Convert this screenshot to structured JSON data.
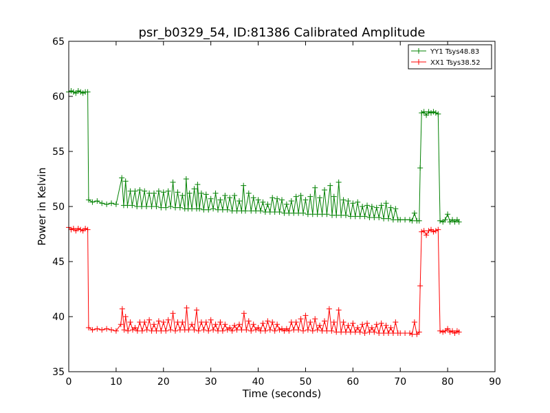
{
  "chart_data": {
    "type": "line",
    "title": "psr_b0329_54, ID:81386 Calibrated Amplitude",
    "xlabel": "Time (seconds)",
    "ylabel": "Power in Kelvin",
    "xlim": [
      0,
      90
    ],
    "ylim": [
      35,
      65
    ],
    "x_ticks": [
      0,
      10,
      20,
      30,
      40,
      50,
      60,
      70,
      80,
      90
    ],
    "y_ticks": [
      35,
      40,
      45,
      50,
      55,
      60,
      65
    ],
    "grid": false,
    "legend_position": "top-right",
    "marker": "+",
    "series": [
      {
        "name": "YY1 Tsys48.83",
        "color": "#008000",
        "points": [
          [
            0,
            60.4
          ],
          [
            0.5,
            60.5
          ],
          [
            1,
            60.4
          ],
          [
            1.5,
            60.3
          ],
          [
            2,
            60.5
          ],
          [
            2.5,
            60.4
          ],
          [
            3,
            60.3
          ],
          [
            3.5,
            60.4
          ],
          [
            4,
            60.4
          ],
          [
            4.2,
            50.6
          ],
          [
            5,
            50.4
          ],
          [
            6,
            50.5
          ],
          [
            7,
            50.3
          ],
          [
            8,
            50.2
          ],
          [
            9,
            50.3
          ],
          [
            10,
            50.2
          ],
          [
            11.2,
            52.6
          ],
          [
            11.6,
            50.1
          ],
          [
            12,
            52.3
          ],
          [
            12.4,
            50.1
          ],
          [
            13,
            51.4
          ],
          [
            13.4,
            50.1
          ],
          [
            14,
            51.4
          ],
          [
            14.4,
            50.0
          ],
          [
            15,
            51.5
          ],
          [
            15.4,
            50.0
          ],
          [
            16,
            51.4
          ],
          [
            16.4,
            50.0
          ],
          [
            17,
            51.2
          ],
          [
            17.5,
            50.0
          ],
          [
            18,
            51.2
          ],
          [
            18.5,
            50.0
          ],
          [
            19,
            51.4
          ],
          [
            19.5,
            49.9
          ],
          [
            20,
            51.3
          ],
          [
            20.5,
            49.9
          ],
          [
            21,
            51.4
          ],
          [
            21.5,
            50.0
          ],
          [
            22,
            52.2
          ],
          [
            22.5,
            49.9
          ],
          [
            23,
            51.3
          ],
          [
            23.5,
            49.9
          ],
          [
            24,
            51.0
          ],
          [
            24.5,
            49.8
          ],
          [
            24.8,
            52.5
          ],
          [
            25.2,
            49.8
          ],
          [
            25.5,
            51.2
          ],
          [
            26,
            49.8
          ],
          [
            26.5,
            51.6
          ],
          [
            27,
            49.8
          ],
          [
            27.2,
            52.0
          ],
          [
            27.6,
            49.8
          ],
          [
            28,
            51.2
          ],
          [
            28.5,
            49.7
          ],
          [
            29,
            51.1
          ],
          [
            29.5,
            49.7
          ],
          [
            30,
            50.7
          ],
          [
            30.5,
            49.8
          ],
          [
            31,
            51.2
          ],
          [
            31.5,
            49.7
          ],
          [
            32,
            50.6
          ],
          [
            32.5,
            49.7
          ],
          [
            33,
            51.0
          ],
          [
            33.5,
            49.7
          ],
          [
            34,
            50.8
          ],
          [
            34.5,
            49.6
          ],
          [
            35,
            51.0
          ],
          [
            35.5,
            49.6
          ],
          [
            36,
            50.5
          ],
          [
            36.5,
            49.6
          ],
          [
            36.9,
            51.9
          ],
          [
            37.3,
            49.6
          ],
          [
            38,
            51.2
          ],
          [
            38.5,
            49.6
          ],
          [
            39,
            50.8
          ],
          [
            39.5,
            49.6
          ],
          [
            40,
            50.6
          ],
          [
            40.5,
            49.6
          ],
          [
            41,
            50.4
          ],
          [
            41.5,
            49.5
          ],
          [
            42,
            50.2
          ],
          [
            42.5,
            49.5
          ],
          [
            43,
            50.8
          ],
          [
            43.5,
            49.5
          ],
          [
            44,
            50.7
          ],
          [
            44.5,
            49.5
          ],
          [
            45,
            50.6
          ],
          [
            45.5,
            49.4
          ],
          [
            46,
            50.2
          ],
          [
            46.5,
            49.4
          ],
          [
            47,
            50.5
          ],
          [
            47.5,
            49.4
          ],
          [
            48,
            50.9
          ],
          [
            48.5,
            49.4
          ],
          [
            49,
            51.0
          ],
          [
            49.5,
            49.4
          ],
          [
            50,
            50.6
          ],
          [
            50.5,
            49.3
          ],
          [
            51,
            50.9
          ],
          [
            51.5,
            49.3
          ],
          [
            52,
            51.7
          ],
          [
            52.5,
            49.3
          ],
          [
            53,
            50.8
          ],
          [
            53.5,
            49.3
          ],
          [
            54,
            51.5
          ],
          [
            54.5,
            49.3
          ],
          [
            55.2,
            51.9
          ],
          [
            55.6,
            49.2
          ],
          [
            56,
            50.9
          ],
          [
            56.5,
            49.2
          ],
          [
            57,
            52.2
          ],
          [
            57.5,
            49.2
          ],
          [
            58,
            50.6
          ],
          [
            58.5,
            49.2
          ],
          [
            59,
            50.5
          ],
          [
            59.5,
            49.1
          ],
          [
            60,
            50.3
          ],
          [
            60.5,
            49.1
          ],
          [
            61,
            50.4
          ],
          [
            61.5,
            49.1
          ],
          [
            62,
            50.0
          ],
          [
            62.5,
            49.1
          ],
          [
            63,
            50.1
          ],
          [
            63.5,
            49.0
          ],
          [
            64,
            50.0
          ],
          [
            64.5,
            49.0
          ],
          [
            65,
            49.9
          ],
          [
            65.5,
            49.0
          ],
          [
            66,
            50.1
          ],
          [
            66.5,
            48.9
          ],
          [
            67,
            50.3
          ],
          [
            67.5,
            48.9
          ],
          [
            68,
            49.9
          ],
          [
            68.5,
            48.8
          ],
          [
            69,
            49.8
          ],
          [
            69.5,
            48.8
          ],
          [
            70,
            48.8
          ],
          [
            71,
            48.8
          ],
          [
            72,
            48.8
          ],
          [
            72.5,
            48.7
          ],
          [
            73,
            49.4
          ],
          [
            73.5,
            48.7
          ],
          [
            74,
            48.7
          ],
          [
            74.2,
            53.5
          ],
          [
            74.5,
            58.5
          ],
          [
            75,
            58.6
          ],
          [
            75.5,
            58.3
          ],
          [
            76,
            58.6
          ],
          [
            76.5,
            58.5
          ],
          [
            77,
            58.6
          ],
          [
            77.5,
            58.5
          ],
          [
            78,
            58.4
          ],
          [
            78.4,
            48.7
          ],
          [
            79,
            48.6
          ],
          [
            79.5,
            48.8
          ],
          [
            80,
            49.3
          ],
          [
            80.5,
            48.6
          ],
          [
            81,
            48.8
          ],
          [
            81.5,
            48.6
          ],
          [
            82,
            48.8
          ],
          [
            82.4,
            48.6
          ]
        ]
      },
      {
        "name": "XX1 Tsys38.52",
        "color": "#ff0000",
        "points": [
          [
            0,
            48.1
          ],
          [
            0.5,
            47.9
          ],
          [
            1,
            48.0
          ],
          [
            1.5,
            47.8
          ],
          [
            2,
            48.0
          ],
          [
            2.5,
            47.9
          ],
          [
            3,
            47.8
          ],
          [
            3.5,
            48.0
          ],
          [
            4,
            47.9
          ],
          [
            4.2,
            39.0
          ],
          [
            5,
            38.8
          ],
          [
            6,
            38.9
          ],
          [
            7,
            38.8
          ],
          [
            8,
            38.9
          ],
          [
            9,
            38.8
          ],
          [
            10,
            38.7
          ],
          [
            11,
            39.3
          ],
          [
            11.3,
            40.7
          ],
          [
            11.7,
            38.8
          ],
          [
            12,
            40.0
          ],
          [
            12.5,
            38.7
          ],
          [
            13,
            39.5
          ],
          [
            13.5,
            38.8
          ],
          [
            14,
            39.0
          ],
          [
            14.5,
            38.7
          ],
          [
            15,
            39.5
          ],
          [
            15.5,
            38.7
          ],
          [
            16,
            39.5
          ],
          [
            16.5,
            38.8
          ],
          [
            17,
            39.7
          ],
          [
            17.5,
            38.7
          ],
          [
            18,
            39.3
          ],
          [
            18.5,
            38.7
          ],
          [
            19,
            39.6
          ],
          [
            19.5,
            38.7
          ],
          [
            20,
            39.5
          ],
          [
            20.5,
            38.7
          ],
          [
            21,
            39.7
          ],
          [
            21.5,
            38.8
          ],
          [
            22,
            40.3
          ],
          [
            22.5,
            38.7
          ],
          [
            23,
            39.5
          ],
          [
            23.5,
            38.8
          ],
          [
            24,
            39.5
          ],
          [
            24.5,
            38.8
          ],
          [
            24.9,
            40.8
          ],
          [
            25.3,
            38.8
          ],
          [
            26,
            39.3
          ],
          [
            26.5,
            38.8
          ],
          [
            27,
            40.6
          ],
          [
            27.4,
            38.7
          ],
          [
            28,
            39.5
          ],
          [
            28.5,
            38.8
          ],
          [
            29,
            39.5
          ],
          [
            29.5,
            38.7
          ],
          [
            30,
            39.7
          ],
          [
            30.5,
            38.8
          ],
          [
            31,
            39.3
          ],
          [
            31.5,
            38.7
          ],
          [
            32,
            39.5
          ],
          [
            32.5,
            38.7
          ],
          [
            33,
            39.3
          ],
          [
            33.5,
            38.8
          ],
          [
            34,
            39.0
          ],
          [
            34.5,
            38.7
          ],
          [
            35,
            39.2
          ],
          [
            35.5,
            38.8
          ],
          [
            36,
            39.3
          ],
          [
            36.5,
            38.8
          ],
          [
            37,
            40.3
          ],
          [
            37.5,
            38.8
          ],
          [
            38,
            39.6
          ],
          [
            38.5,
            38.7
          ],
          [
            39,
            39.3
          ],
          [
            39.5,
            38.8
          ],
          [
            40,
            39.0
          ],
          [
            40.5,
            38.7
          ],
          [
            41,
            39.4
          ],
          [
            41.5,
            38.7
          ],
          [
            42,
            39.6
          ],
          [
            42.5,
            38.8
          ],
          [
            43,
            39.5
          ],
          [
            43.5,
            38.7
          ],
          [
            44,
            39.3
          ],
          [
            44.5,
            38.8
          ],
          [
            45,
            38.9
          ],
          [
            45.5,
            38.7
          ],
          [
            46,
            38.9
          ],
          [
            46.5,
            38.7
          ],
          [
            47,
            39.5
          ],
          [
            47.5,
            38.8
          ],
          [
            48,
            39.5
          ],
          [
            48.5,
            38.8
          ],
          [
            49,
            39.8
          ],
          [
            49.5,
            38.7
          ],
          [
            50,
            40.1
          ],
          [
            50.5,
            38.8
          ],
          [
            51,
            39.5
          ],
          [
            51.5,
            38.7
          ],
          [
            52,
            39.8
          ],
          [
            52.5,
            38.8
          ],
          [
            53,
            39.2
          ],
          [
            53.5,
            38.7
          ],
          [
            54,
            39.6
          ],
          [
            54.5,
            38.7
          ],
          [
            55,
            40.7
          ],
          [
            55.5,
            38.7
          ],
          [
            56,
            39.5
          ],
          [
            56.5,
            38.6
          ],
          [
            57,
            40.6
          ],
          [
            57.5,
            38.6
          ],
          [
            58,
            39.5
          ],
          [
            58.5,
            38.6
          ],
          [
            59,
            39.2
          ],
          [
            59.5,
            38.6
          ],
          [
            60,
            39.4
          ],
          [
            60.5,
            38.6
          ],
          [
            61,
            39.0
          ],
          [
            61.5,
            38.6
          ],
          [
            62,
            39.3
          ],
          [
            62.5,
            38.5
          ],
          [
            63,
            39.4
          ],
          [
            63.5,
            38.6
          ],
          [
            64,
            39.0
          ],
          [
            64.5,
            38.6
          ],
          [
            65,
            39.3
          ],
          [
            65.5,
            38.5
          ],
          [
            66,
            39.4
          ],
          [
            66.5,
            38.5
          ],
          [
            67,
            39.2
          ],
          [
            67.5,
            38.5
          ],
          [
            68,
            39.0
          ],
          [
            68.5,
            38.5
          ],
          [
            69,
            39.5
          ],
          [
            69.5,
            38.5
          ],
          [
            70,
            38.5
          ],
          [
            71,
            38.5
          ],
          [
            72,
            38.5
          ],
          [
            72.5,
            38.4
          ],
          [
            73,
            39.5
          ],
          [
            73.5,
            38.4
          ],
          [
            74,
            38.6
          ],
          [
            74.2,
            42.8
          ],
          [
            74.5,
            47.7
          ],
          [
            75,
            47.8
          ],
          [
            75.5,
            47.4
          ],
          [
            76,
            47.8
          ],
          [
            76.5,
            47.9
          ],
          [
            77,
            47.7
          ],
          [
            77.5,
            47.8
          ],
          [
            78,
            47.9
          ],
          [
            78.4,
            38.7
          ],
          [
            79,
            38.6
          ],
          [
            79.5,
            38.7
          ],
          [
            80,
            38.9
          ],
          [
            80.5,
            38.6
          ],
          [
            81,
            38.7
          ],
          [
            81.5,
            38.5
          ],
          [
            82,
            38.7
          ],
          [
            82.4,
            38.6
          ]
        ]
      }
    ]
  }
}
